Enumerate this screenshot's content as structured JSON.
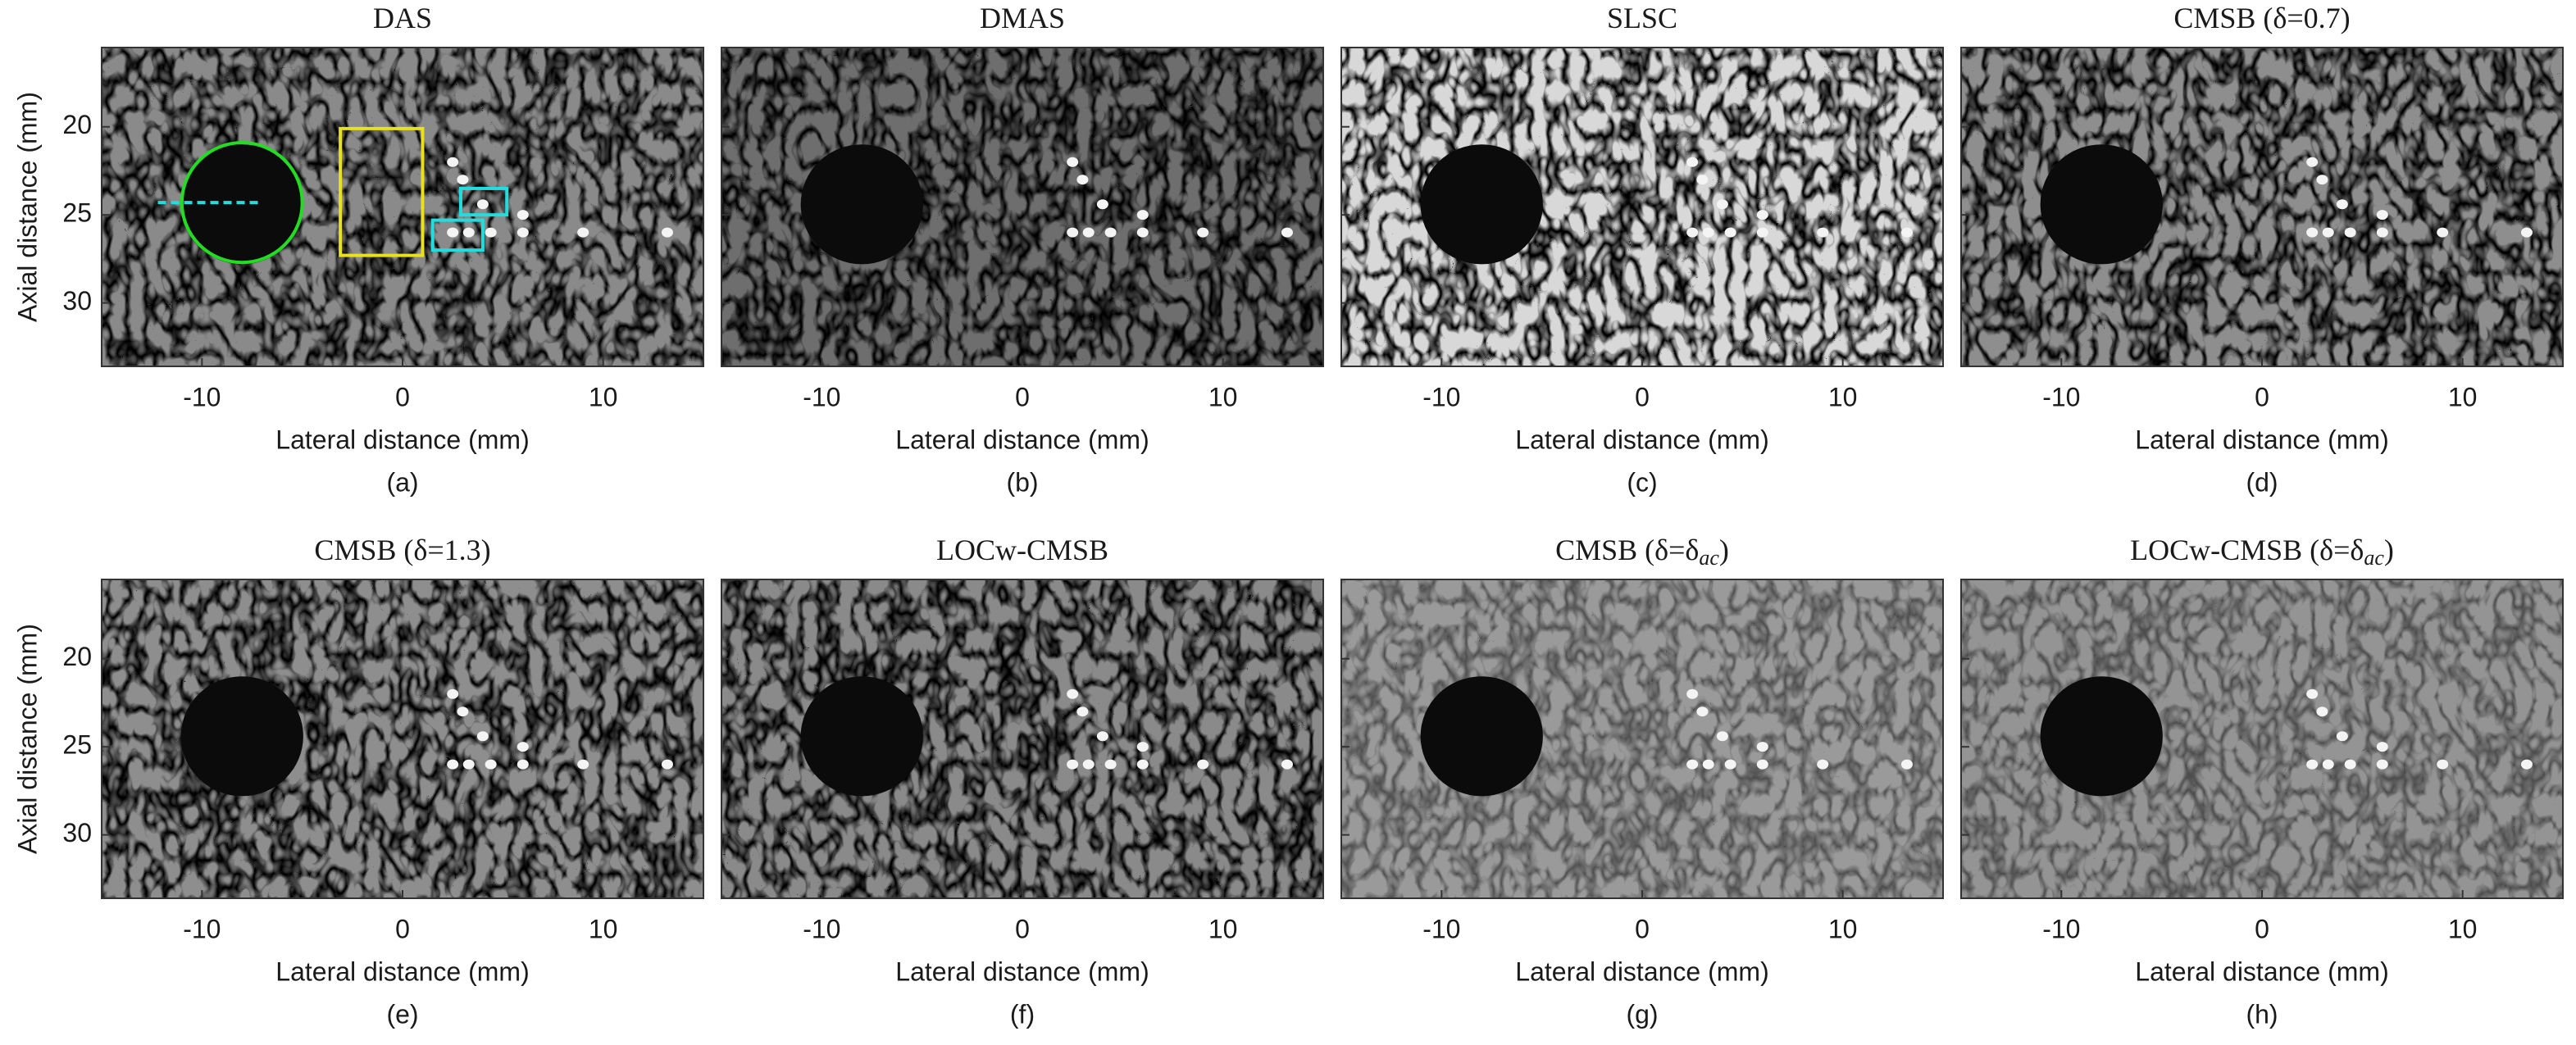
{
  "axes": {
    "xlim": [
      -15,
      15
    ],
    "ylim": [
      15.5,
      33.6
    ],
    "xticks": [
      -10,
      0,
      10
    ],
    "yticks": [
      20,
      25,
      30
    ]
  },
  "panels": [
    {
      "title": "DAS",
      "caption": "(a)",
      "xlabel": "Lateral distance (mm)",
      "ylabel": "Axial distance (mm)"
    },
    {
      "title": "DMAS",
      "caption": "(b)",
      "xlabel": "Lateral distance (mm)"
    },
    {
      "title": "SLSC",
      "caption": "(c)",
      "xlabel": "Lateral distance (mm)"
    },
    {
      "title": "CMSB (δ=0.7)",
      "caption": "(d)",
      "xlabel": "Lateral distance (mm)"
    },
    {
      "title": "CMSB (δ=1.3)",
      "caption": "(e)",
      "xlabel": "Lateral distance (mm)",
      "ylabel": "Axial distance (mm)"
    },
    {
      "title": "LOCw-CMSB",
      "caption": "(f)",
      "xlabel": "Lateral distance (mm)"
    },
    {
      "title": "CMSB (δ=δ",
      "title_sub": "ac",
      "title_end": ")",
      "caption": "(g)",
      "xlabel": "Lateral distance (mm)"
    },
    {
      "title": "LOCw-CMSB (δ=δ",
      "title_sub": "ac",
      "title_end": ")",
      "caption": "(h)",
      "xlabel": "Lateral distance (mm)"
    }
  ]
}
